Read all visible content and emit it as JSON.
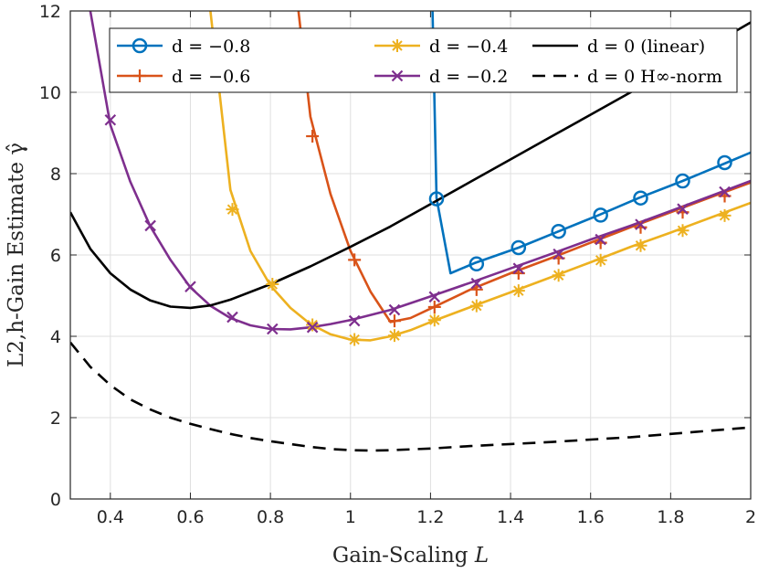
{
  "chart_data": {
    "type": "line",
    "xlabel": "Gain-Scaling L",
    "ylabel": "L2,h-Gain Estimate γ̂",
    "xlim": [
      0.3,
      2.0
    ],
    "ylim": [
      0,
      12
    ],
    "xticks": [
      0.4,
      0.6,
      0.8,
      1.0,
      1.2,
      1.4,
      1.6,
      1.8,
      2.0
    ],
    "xtick_labels": [
      "0.4",
      "0.6",
      "0.8",
      "1",
      "1.2",
      "1.4",
      "1.6",
      "1.8",
      "2"
    ],
    "yticks": [
      0,
      2,
      4,
      6,
      8,
      10,
      12
    ],
    "ytick_labels": [
      "0",
      "2",
      "4",
      "6",
      "8",
      "10",
      "12"
    ],
    "grid": true,
    "legend_position": "top-right",
    "series": [
      {
        "name": "d = −0.8",
        "color": "#0072BD",
        "marker": "circle",
        "x": [
          1.205,
          1.215,
          1.25,
          1.31,
          1.42,
          1.52,
          1.62,
          1.72,
          1.83,
          1.94,
          2.0
        ],
        "y": [
          12.0,
          7.4,
          5.55,
          5.8,
          6.18,
          6.58,
          6.98,
          7.4,
          7.82,
          8.27,
          8.52
        ],
        "marker_x": [
          1.215,
          1.315,
          1.42,
          1.52,
          1.625,
          1.725,
          1.83,
          1.935
        ],
        "marker_y": [
          7.38,
          5.78,
          6.18,
          6.58,
          6.98,
          7.4,
          7.82,
          8.27
        ]
      },
      {
        "name": "d = −0.6",
        "color": "#D95319",
        "marker": "plus",
        "x": [
          0.87,
          0.9,
          0.95,
          1.0,
          1.05,
          1.1,
          1.15,
          1.2,
          1.3,
          1.4,
          1.5,
          1.6,
          1.7,
          1.8,
          1.9,
          2.0
        ],
        "y": [
          12.0,
          9.4,
          7.5,
          6.1,
          5.1,
          4.35,
          4.45,
          4.68,
          5.15,
          5.55,
          5.92,
          6.3,
          6.68,
          7.05,
          7.42,
          7.78
        ],
        "marker_x": [
          0.905,
          1.01,
          1.11,
          1.21,
          1.315,
          1.42,
          1.52,
          1.625,
          1.725,
          1.83,
          1.935
        ],
        "marker_y": [
          8.92,
          5.88,
          4.38,
          4.72,
          5.15,
          5.55,
          5.92,
          6.3,
          6.68,
          7.05,
          7.45
        ]
      },
      {
        "name": "d = −0.4",
        "color": "#EDB120",
        "marker": "asterisk",
        "x": [
          0.65,
          0.7,
          0.75,
          0.8,
          0.85,
          0.9,
          0.95,
          1.0,
          1.05,
          1.1,
          1.15,
          1.2,
          1.3,
          1.4,
          1.5,
          1.6,
          1.7,
          1.8,
          1.9,
          2.0
        ],
        "y": [
          12.0,
          7.6,
          6.1,
          5.25,
          4.7,
          4.3,
          4.05,
          3.92,
          3.9,
          4.0,
          4.15,
          4.35,
          4.72,
          5.08,
          5.45,
          5.82,
          6.2,
          6.55,
          6.92,
          7.28
        ],
        "marker_x": [
          0.705,
          0.805,
          0.905,
          1.01,
          1.11,
          1.21,
          1.315,
          1.42,
          1.52,
          1.625,
          1.725,
          1.83,
          1.935
        ],
        "marker_y": [
          7.12,
          5.28,
          4.28,
          3.92,
          4.02,
          4.4,
          4.75,
          5.12,
          5.5,
          5.87,
          6.23,
          6.6,
          6.97
        ]
      },
      {
        "name": "d = −0.2",
        "color": "#7E2F8E",
        "marker": "cross",
        "x": [
          0.35,
          0.4,
          0.45,
          0.5,
          0.55,
          0.6,
          0.65,
          0.7,
          0.75,
          0.8,
          0.85,
          0.9,
          0.95,
          1.0,
          1.1,
          1.2,
          1.3,
          1.4,
          1.5,
          1.6,
          1.7,
          1.8,
          1.9,
          2.0
        ],
        "y": [
          12.0,
          9.2,
          7.8,
          6.7,
          5.88,
          5.2,
          4.75,
          4.45,
          4.27,
          4.18,
          4.17,
          4.22,
          4.3,
          4.4,
          4.65,
          4.98,
          5.32,
          5.67,
          6.02,
          6.38,
          6.72,
          7.08,
          7.45,
          7.82
        ],
        "marker_x": [
          0.4,
          0.5,
          0.6,
          0.705,
          0.805,
          0.905,
          1.01,
          1.11,
          1.21,
          1.315,
          1.42,
          1.52,
          1.625,
          1.725,
          1.83,
          1.935
        ],
        "marker_y": [
          9.32,
          6.72,
          5.22,
          4.47,
          4.18,
          4.22,
          4.38,
          4.65,
          4.97,
          5.3,
          5.67,
          6.02,
          6.38,
          6.75,
          7.13,
          7.55
        ]
      },
      {
        "name": "d = 0 (linear)",
        "color": "#000000",
        "marker": "none",
        "x": [
          0.3,
          0.35,
          0.4,
          0.45,
          0.5,
          0.55,
          0.6,
          0.65,
          0.7,
          0.8,
          0.9,
          1.0,
          1.1,
          1.2,
          1.3,
          1.4,
          1.5,
          1.6,
          1.7,
          1.8,
          1.9,
          2.0
        ],
        "y": [
          7.05,
          6.15,
          5.55,
          5.15,
          4.88,
          4.73,
          4.7,
          4.76,
          4.9,
          5.28,
          5.72,
          6.2,
          6.7,
          7.25,
          7.8,
          8.35,
          8.9,
          9.45,
          10.0,
          10.6,
          11.15,
          11.72
        ]
      },
      {
        "name": "d = 0 H∞-norm",
        "color": "#000000",
        "marker": "none",
        "dashed": true,
        "x": [
          0.3,
          0.35,
          0.4,
          0.45,
          0.5,
          0.55,
          0.6,
          0.65,
          0.7,
          0.75,
          0.8,
          0.85,
          0.9,
          0.95,
          1.0,
          1.05,
          1.1,
          1.2,
          1.3,
          1.4,
          1.5,
          1.6,
          1.7,
          1.8,
          1.9,
          2.0
        ],
        "y": [
          3.85,
          3.25,
          2.8,
          2.45,
          2.2,
          2.0,
          1.85,
          1.72,
          1.6,
          1.5,
          1.42,
          1.35,
          1.28,
          1.23,
          1.2,
          1.19,
          1.2,
          1.24,
          1.3,
          1.35,
          1.4,
          1.46,
          1.52,
          1.6,
          1.68,
          1.76
        ]
      }
    ]
  }
}
